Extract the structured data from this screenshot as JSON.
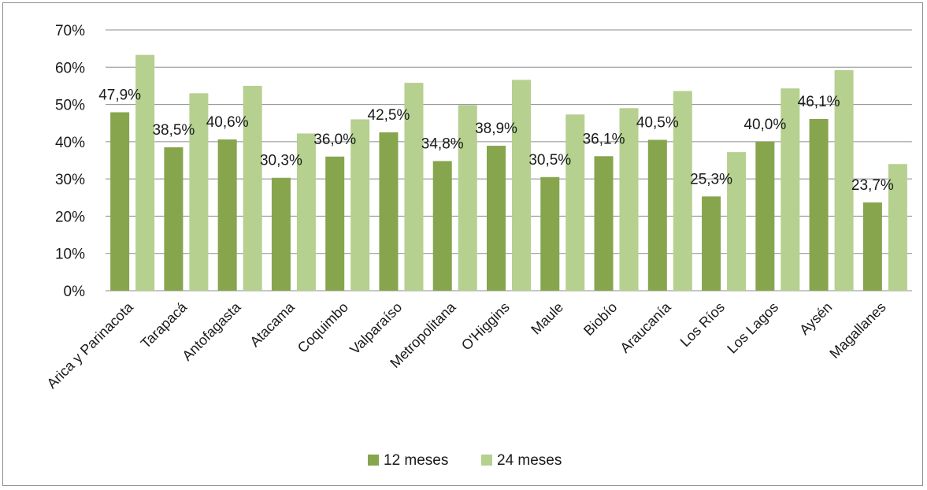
{
  "chart_data": {
    "type": "bar",
    "categories": [
      "Arica y Parinacota",
      "Tarapacá",
      "Antofagasta",
      "Atacama",
      "Coquimbo",
      "Valparaíso",
      "Metropolitana",
      "O'Higgins",
      "Maule",
      "Biobío",
      "Araucanía",
      "Los Ríos",
      "Los Lagos",
      "Aysén",
      "Magallanes"
    ],
    "series": [
      {
        "name": "12 meses",
        "color": "#86a54d",
        "values": [
          47.9,
          38.5,
          40.6,
          30.3,
          36.0,
          42.5,
          34.8,
          38.9,
          30.5,
          36.1,
          40.5,
          25.3,
          40.0,
          46.1,
          23.7
        ],
        "labels": [
          "47,9%",
          "38,5%",
          "40,6%",
          "30,3%",
          "36,0%",
          "42,5%",
          "34,8%",
          "38,9%",
          "30,5%",
          "36,1%",
          "40,5%",
          "25,3%",
          "40,0%",
          "46,1%",
          "23,7%"
        ]
      },
      {
        "name": "24 meses",
        "color": "#b5d08f",
        "values": [
          63.3,
          53.0,
          55.0,
          42.2,
          46.0,
          55.8,
          49.8,
          56.6,
          47.3,
          49.0,
          53.6,
          37.2,
          54.3,
          59.2,
          34.0
        ]
      }
    ],
    "title": "",
    "xlabel": "",
    "ylabel": "",
    "ylim": [
      0,
      70
    ],
    "yticks": [
      "0%",
      "10%",
      "20%",
      "30%",
      "40%",
      "50%",
      "60%",
      "70%"
    ],
    "ytick_values": [
      0,
      10,
      20,
      30,
      40,
      50,
      60,
      70
    ],
    "grid": true,
    "legend_position": "bottom"
  }
}
